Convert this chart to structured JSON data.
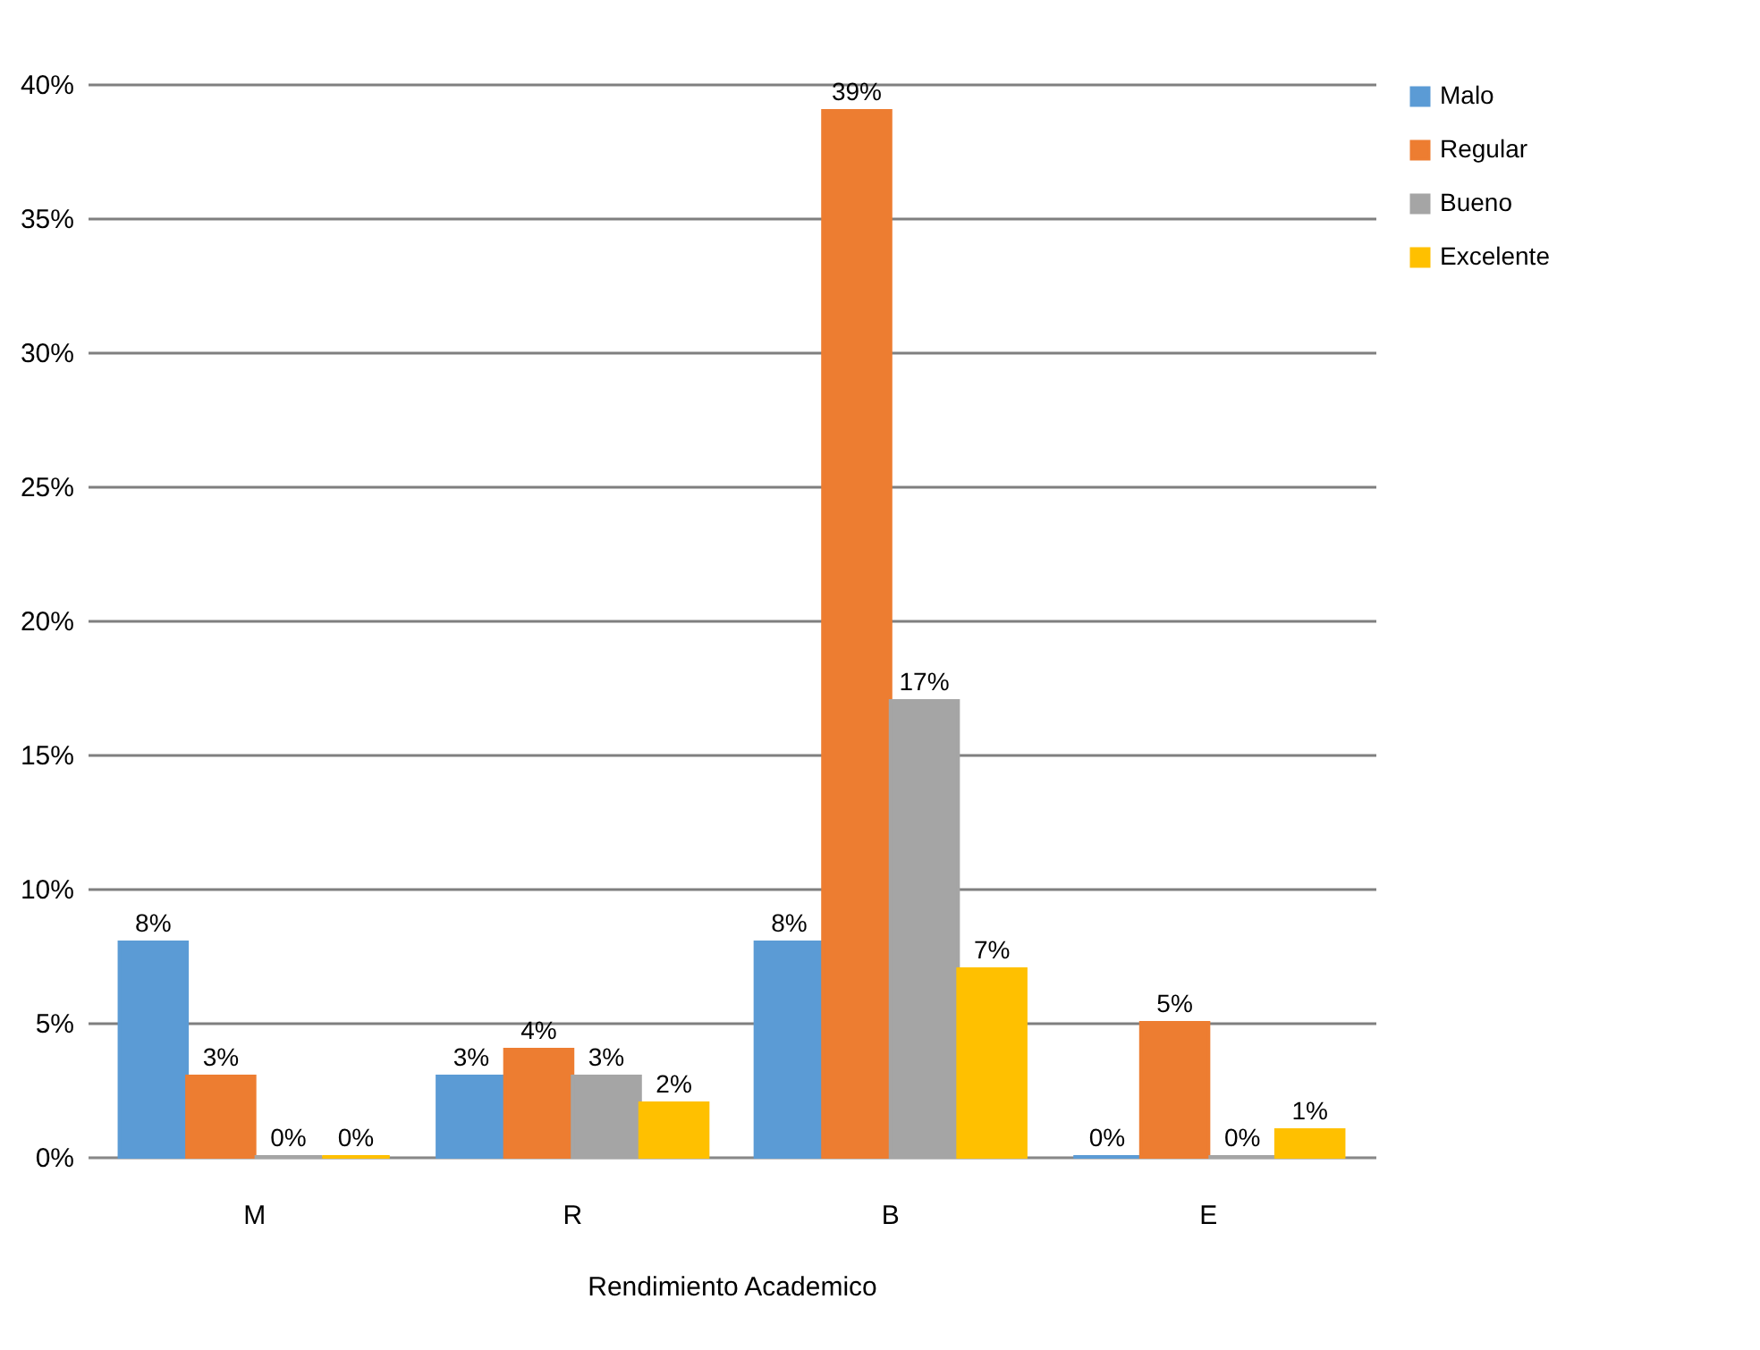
{
  "chart_data": {
    "type": "bar",
    "xlabel": "Rendimiento Academico",
    "categories": [
      "M",
      "R",
      "B",
      "E"
    ],
    "series": [
      {
        "name": "Malo",
        "color": "#5b9bd5",
        "values": [
          8,
          3,
          8,
          0
        ],
        "value_labels": [
          "8%",
          "3%",
          "8%",
          "0%"
        ]
      },
      {
        "name": "Regular",
        "color": "#ed7d31",
        "values": [
          3,
          4,
          39,
          5
        ],
        "value_labels": [
          "3%",
          "4%",
          "39%",
          "5%"
        ]
      },
      {
        "name": "Bueno",
        "color": "#a5a5a5",
        "values": [
          0,
          3,
          17,
          0
        ],
        "value_labels": [
          "0%",
          "3%",
          "17%",
          "0%"
        ]
      },
      {
        "name": "Excelente",
        "color": "#ffc000",
        "values": [
          0,
          2,
          7,
          1
        ],
        "value_labels": [
          "0%",
          "2%",
          "7%",
          "1%"
        ]
      }
    ],
    "ylim": [
      0,
      40
    ],
    "yticks": [
      {
        "value": 0,
        "label": "0%"
      },
      {
        "value": 5,
        "label": "5%"
      },
      {
        "value": 10,
        "label": "10%"
      },
      {
        "value": 15,
        "label": "15%"
      },
      {
        "value": 20,
        "label": "20%"
      },
      {
        "value": 25,
        "label": "25%"
      },
      {
        "value": 30,
        "label": "30%"
      },
      {
        "value": 35,
        "label": "35%"
      },
      {
        "value": 40,
        "label": "40%"
      }
    ],
    "grid": true,
    "legend": "right"
  }
}
